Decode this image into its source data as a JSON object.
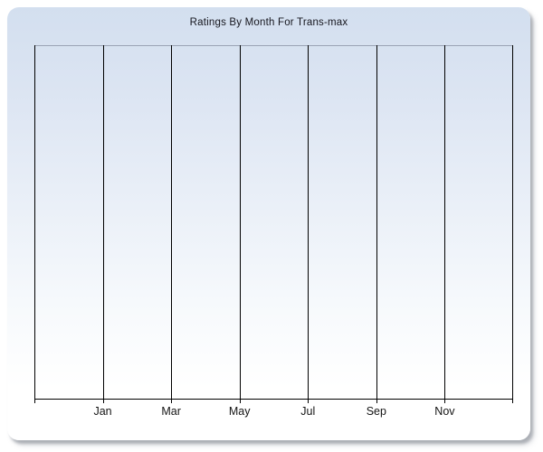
{
  "chart_data": {
    "type": "bar",
    "title": "Ratings By Month For Trans-max",
    "x_tick_labels": [
      "Jan",
      "Mar",
      "May",
      "Jul",
      "Sep",
      "Nov"
    ],
    "series": [],
    "values": [],
    "empty_plot": true,
    "xlabel": "",
    "ylabel": "",
    "y_tick_labels": [],
    "legend": "none",
    "grid": {
      "vertical_gridlines": true,
      "horizontal_gridlines": false,
      "x_intervals": 7
    },
    "x_axis_note": "labels centered under the six interior vertical gridlines; plot bounded left and right by unlabeled vertical lines; small tick marks below the axis at each gridline"
  },
  "colors": {
    "page_background": "#ffffff",
    "panel_gradient_top": "#d3dfef",
    "panel_gradient_bottom": "#ffffff",
    "gridline": "#000000",
    "plot_top_border": "#9aa3b4",
    "title_text": "#16161e",
    "tick_label_text": "#141414",
    "panel_shadow": "#7d838d"
  }
}
